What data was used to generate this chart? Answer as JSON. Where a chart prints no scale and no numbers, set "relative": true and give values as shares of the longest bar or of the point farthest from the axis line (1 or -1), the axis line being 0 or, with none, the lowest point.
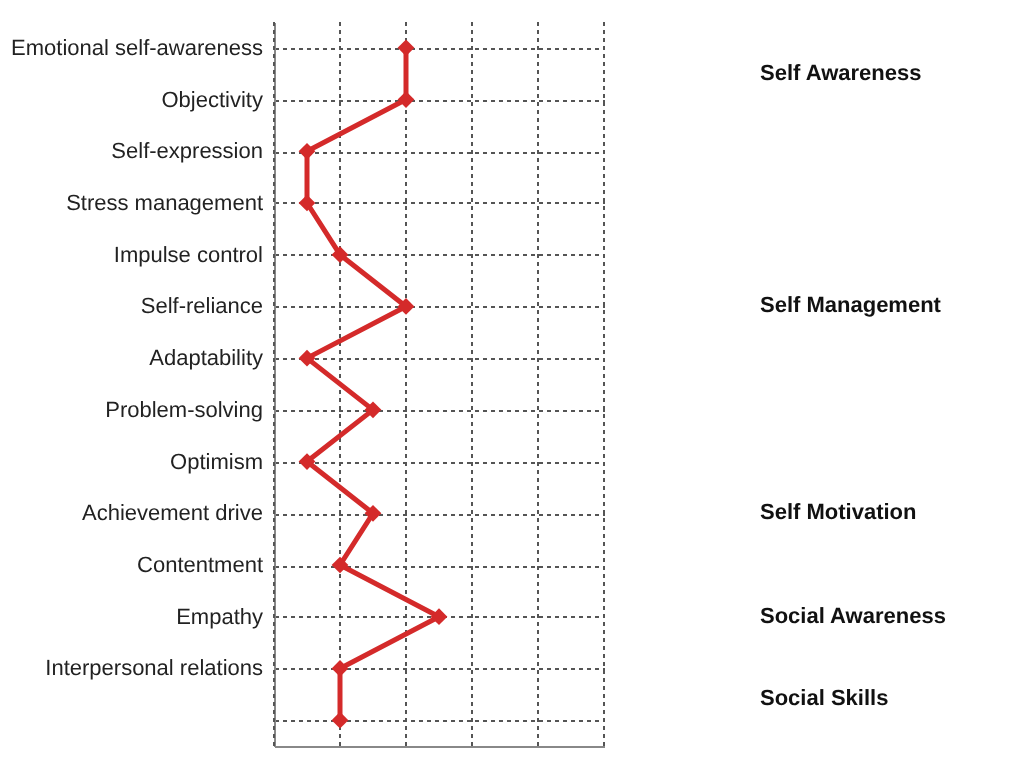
{
  "chart_data": {
    "type": "line",
    "relative": true,
    "orientation": "horizontal",
    "categories": [
      "Emotional self-awareness",
      "Objectivity",
      "Self-expression",
      "Stress management",
      "Impulse control",
      "Self-reliance",
      "Adaptability",
      "Problem-solving",
      "Optimism",
      "Achievement drive",
      "Contentment",
      "Empathy",
      "Interpersonal relations",
      null
    ],
    "series": [
      {
        "color": "#d42a2a",
        "values": [
          0.8,
          0.8,
          0.2,
          0.2,
          0.4,
          0.8,
          0.2,
          0.6,
          0.2,
          0.6,
          0.4,
          1,
          0.4,
          0.4
        ]
      }
    ],
    "marker": "diamond",
    "line_style": "solid",
    "grid": true,
    "annotations": [
      "Self Awareness",
      "Self Management",
      "Self Motivation",
      "Social Awareness",
      "Social Skills"
    ]
  }
}
